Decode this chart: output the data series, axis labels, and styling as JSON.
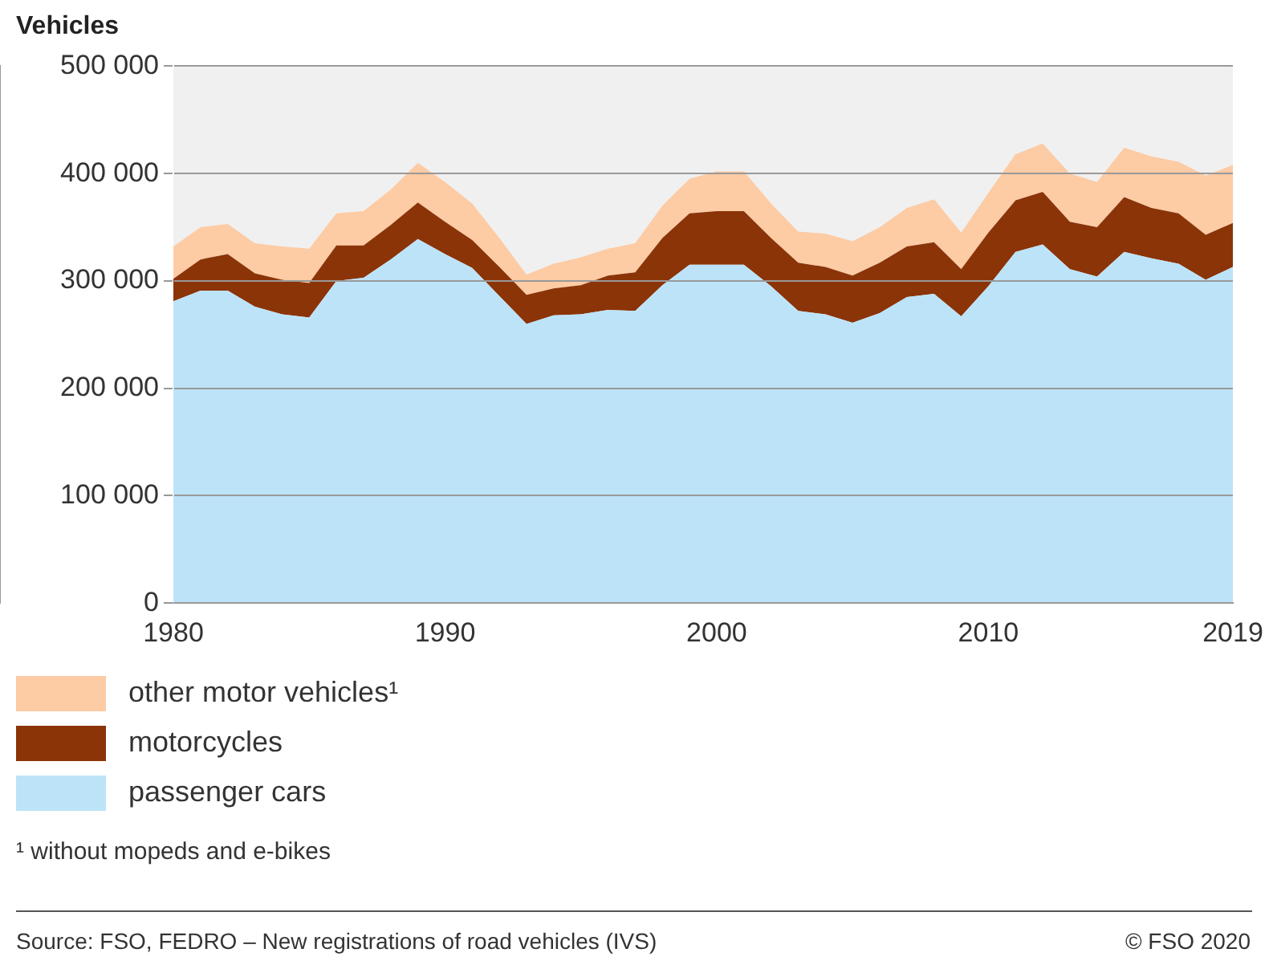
{
  "chart_data": {
    "type": "area",
    "stacked": true,
    "ylabel": "Vehicles",
    "x": [
      1980,
      1981,
      1982,
      1983,
      1984,
      1985,
      1986,
      1987,
      1988,
      1989,
      1990,
      1991,
      1992,
      1993,
      1994,
      1995,
      1996,
      1997,
      1998,
      1999,
      2000,
      2001,
      2002,
      2003,
      2004,
      2005,
      2006,
      2007,
      2008,
      2009,
      2010,
      2011,
      2012,
      2013,
      2014,
      2015,
      2016,
      2017,
      2018,
      2019
    ],
    "series": [
      {
        "name": "passenger cars",
        "color": "#bde3f8",
        "values": [
          281000,
          291000,
          291000,
          276000,
          269000,
          266000,
          300000,
          303000,
          320000,
          339000,
          325000,
          312000,
          286000,
          260000,
          268000,
          269000,
          273000,
          272000,
          296000,
          315000,
          315000,
          315000,
          295000,
          272000,
          269000,
          261000,
          270000,
          285000,
          288000,
          267000,
          295000,
          327000,
          334000,
          311000,
          304000,
          327000,
          321000,
          316000,
          301000,
          313000
        ]
      },
      {
        "name": "motorcycles",
        "color": "#8b3408",
        "values": [
          21000,
          29000,
          34000,
          31000,
          32000,
          32000,
          33000,
          30000,
          32000,
          34000,
          30000,
          26000,
          27000,
          27000,
          25000,
          27000,
          32000,
          36000,
          44000,
          48000,
          50000,
          50000,
          45000,
          45000,
          44000,
          44000,
          47000,
          47000,
          48000,
          44000,
          50000,
          48000,
          49000,
          44000,
          46000,
          51000,
          47000,
          47000,
          42000,
          41000
        ]
      },
      {
        "name": "other motor vehicles¹",
        "color": "#fdcba4",
        "values": [
          30000,
          30000,
          28000,
          28000,
          31000,
          32000,
          30000,
          32000,
          33000,
          37000,
          37000,
          34000,
          27000,
          19000,
          23000,
          26000,
          25000,
          27000,
          30000,
          32000,
          37000,
          37000,
          32000,
          29000,
          31000,
          32000,
          33000,
          36000,
          40000,
          34000,
          37000,
          43000,
          45000,
          45000,
          42000,
          46000,
          48000,
          48000,
          55000,
          54000
        ]
      }
    ],
    "xlim": [
      1980,
      2019
    ],
    "xticks": [
      1980,
      1990,
      2000,
      2010,
      2019
    ],
    "ylim": [
      0,
      500000
    ],
    "yticks": [
      {
        "value": 0,
        "label": "0"
      },
      {
        "value": 100000,
        "label": "100 000"
      },
      {
        "value": 200000,
        "label": "200 000"
      },
      {
        "value": 300000,
        "label": "300 000"
      },
      {
        "value": 400000,
        "label": "400 000"
      },
      {
        "value": 500000,
        "label": "500 000"
      }
    ],
    "grid": "y",
    "legend": "bottom",
    "annotations": [
      "¹   without mopeds and e-bikes",
      "Source: FSO, FEDRO – New registrations of road vehicles (IVS)",
      "© FSO 2020"
    ]
  }
}
